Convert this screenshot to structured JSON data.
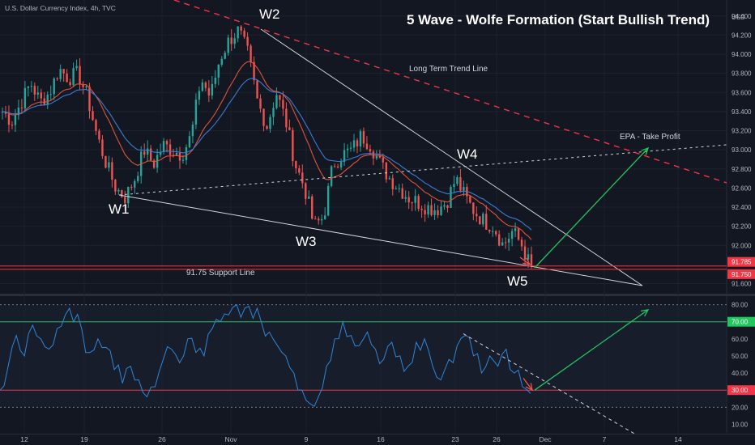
{
  "header": {
    "symbol": "U.S. Dollar Currency Index, 4h, TVC",
    "title": "5 Wave - Wolfe Formation (Start Bullish Trend)"
  },
  "colors": {
    "background": "#131722",
    "bull": "#26a69a",
    "bear": "#ef5350",
    "ma_red": "#e0533a",
    "ma_blue": "#3a7bd5",
    "rsi": "#2f86d6",
    "trend_dashed": "#f23645",
    "take_profit": "#22c55e",
    "support": "#f23645"
  },
  "annotations": {
    "w1": "W1",
    "w2": "W2",
    "w3": "W3",
    "w4": "W4",
    "w5": "W5",
    "long_term_trend": "Long Term Trend Line",
    "epa": "EPA - Take Profit",
    "support": "91.75 Support Line"
  },
  "chart_data": [
    {
      "type": "candlestick",
      "series_name": "U.S. Dollar Currency Index",
      "timeframe": "4h",
      "currency": "USD",
      "y_axis_unit": "USD",
      "yticks": [
        "94.400",
        "94.200",
        "94.000",
        "93.800",
        "93.600",
        "93.400",
        "93.200",
        "93.000",
        "92.800",
        "92.600",
        "92.400",
        "92.200",
        "92.000",
        "91.600"
      ],
      "ylim": [
        91.52,
        94.5
      ],
      "price_badges": [
        {
          "value": "91.785",
          "color": "#f23645"
        },
        {
          "value": "91.750",
          "color": "#f23645"
        }
      ],
      "xticks": [
        "12",
        "19",
        "26",
        "Nov",
        "9",
        "16",
        "23",
        "26",
        "Dec",
        "7",
        "14"
      ],
      "waves": [
        {
          "label": "W1",
          "value": 92.5
        },
        {
          "label": "W2",
          "value": 94.3
        },
        {
          "label": "W3",
          "value": 92.15
        },
        {
          "label": "W4",
          "value": 92.78
        },
        {
          "label": "W5",
          "value": 91.75
        }
      ],
      "close_path": [
        93.4,
        93.3,
        93.5,
        93.7,
        93.5,
        93.6,
        93.85,
        93.75,
        93.8,
        93.55,
        93.15,
        92.85,
        92.6,
        92.5,
        92.7,
        93.0,
        92.85,
        93.05,
        93.0,
        92.95,
        93.15,
        93.75,
        93.55,
        93.95,
        94.15,
        94.25,
        94.0,
        93.5,
        93.25,
        93.6,
        93.3,
        92.85,
        92.6,
        92.2,
        92.3,
        92.85,
        92.95,
        93.0,
        93.15,
        93.05,
        92.85,
        92.7,
        92.6,
        92.5,
        92.45,
        92.4,
        92.38,
        92.45,
        92.7,
        92.5,
        92.35,
        92.25,
        92.2,
        92.0,
        92.15,
        92.0,
        91.75
      ],
      "support_level": 91.75
    },
    {
      "type": "line",
      "series_name": "RSI",
      "yticks": [
        "80.00",
        "60.00",
        "50.00",
        "40.00",
        "20.00",
        "10.00"
      ],
      "ylim": [
        5,
        85
      ],
      "levels": [
        {
          "value": "70.00",
          "color": "#22c55e"
        },
        {
          "value": "30.00",
          "color": "#f23645"
        }
      ],
      "values": [
        30,
        44,
        62,
        50,
        68,
        60,
        54,
        66,
        74,
        70,
        66,
        52,
        60,
        55,
        42,
        34,
        44,
        36,
        26,
        32,
        48,
        54,
        46,
        60,
        52,
        50,
        66,
        70,
        74,
        80,
        78,
        72,
        70,
        64,
        56,
        50,
        40,
        30,
        22,
        26,
        44,
        60,
        70,
        62,
        56,
        64,
        54,
        48,
        58,
        50,
        44,
        58,
        60,
        44,
        36,
        48,
        56,
        62,
        50,
        40,
        50,
        44,
        54,
        40,
        32,
        28
      ]
    }
  ]
}
